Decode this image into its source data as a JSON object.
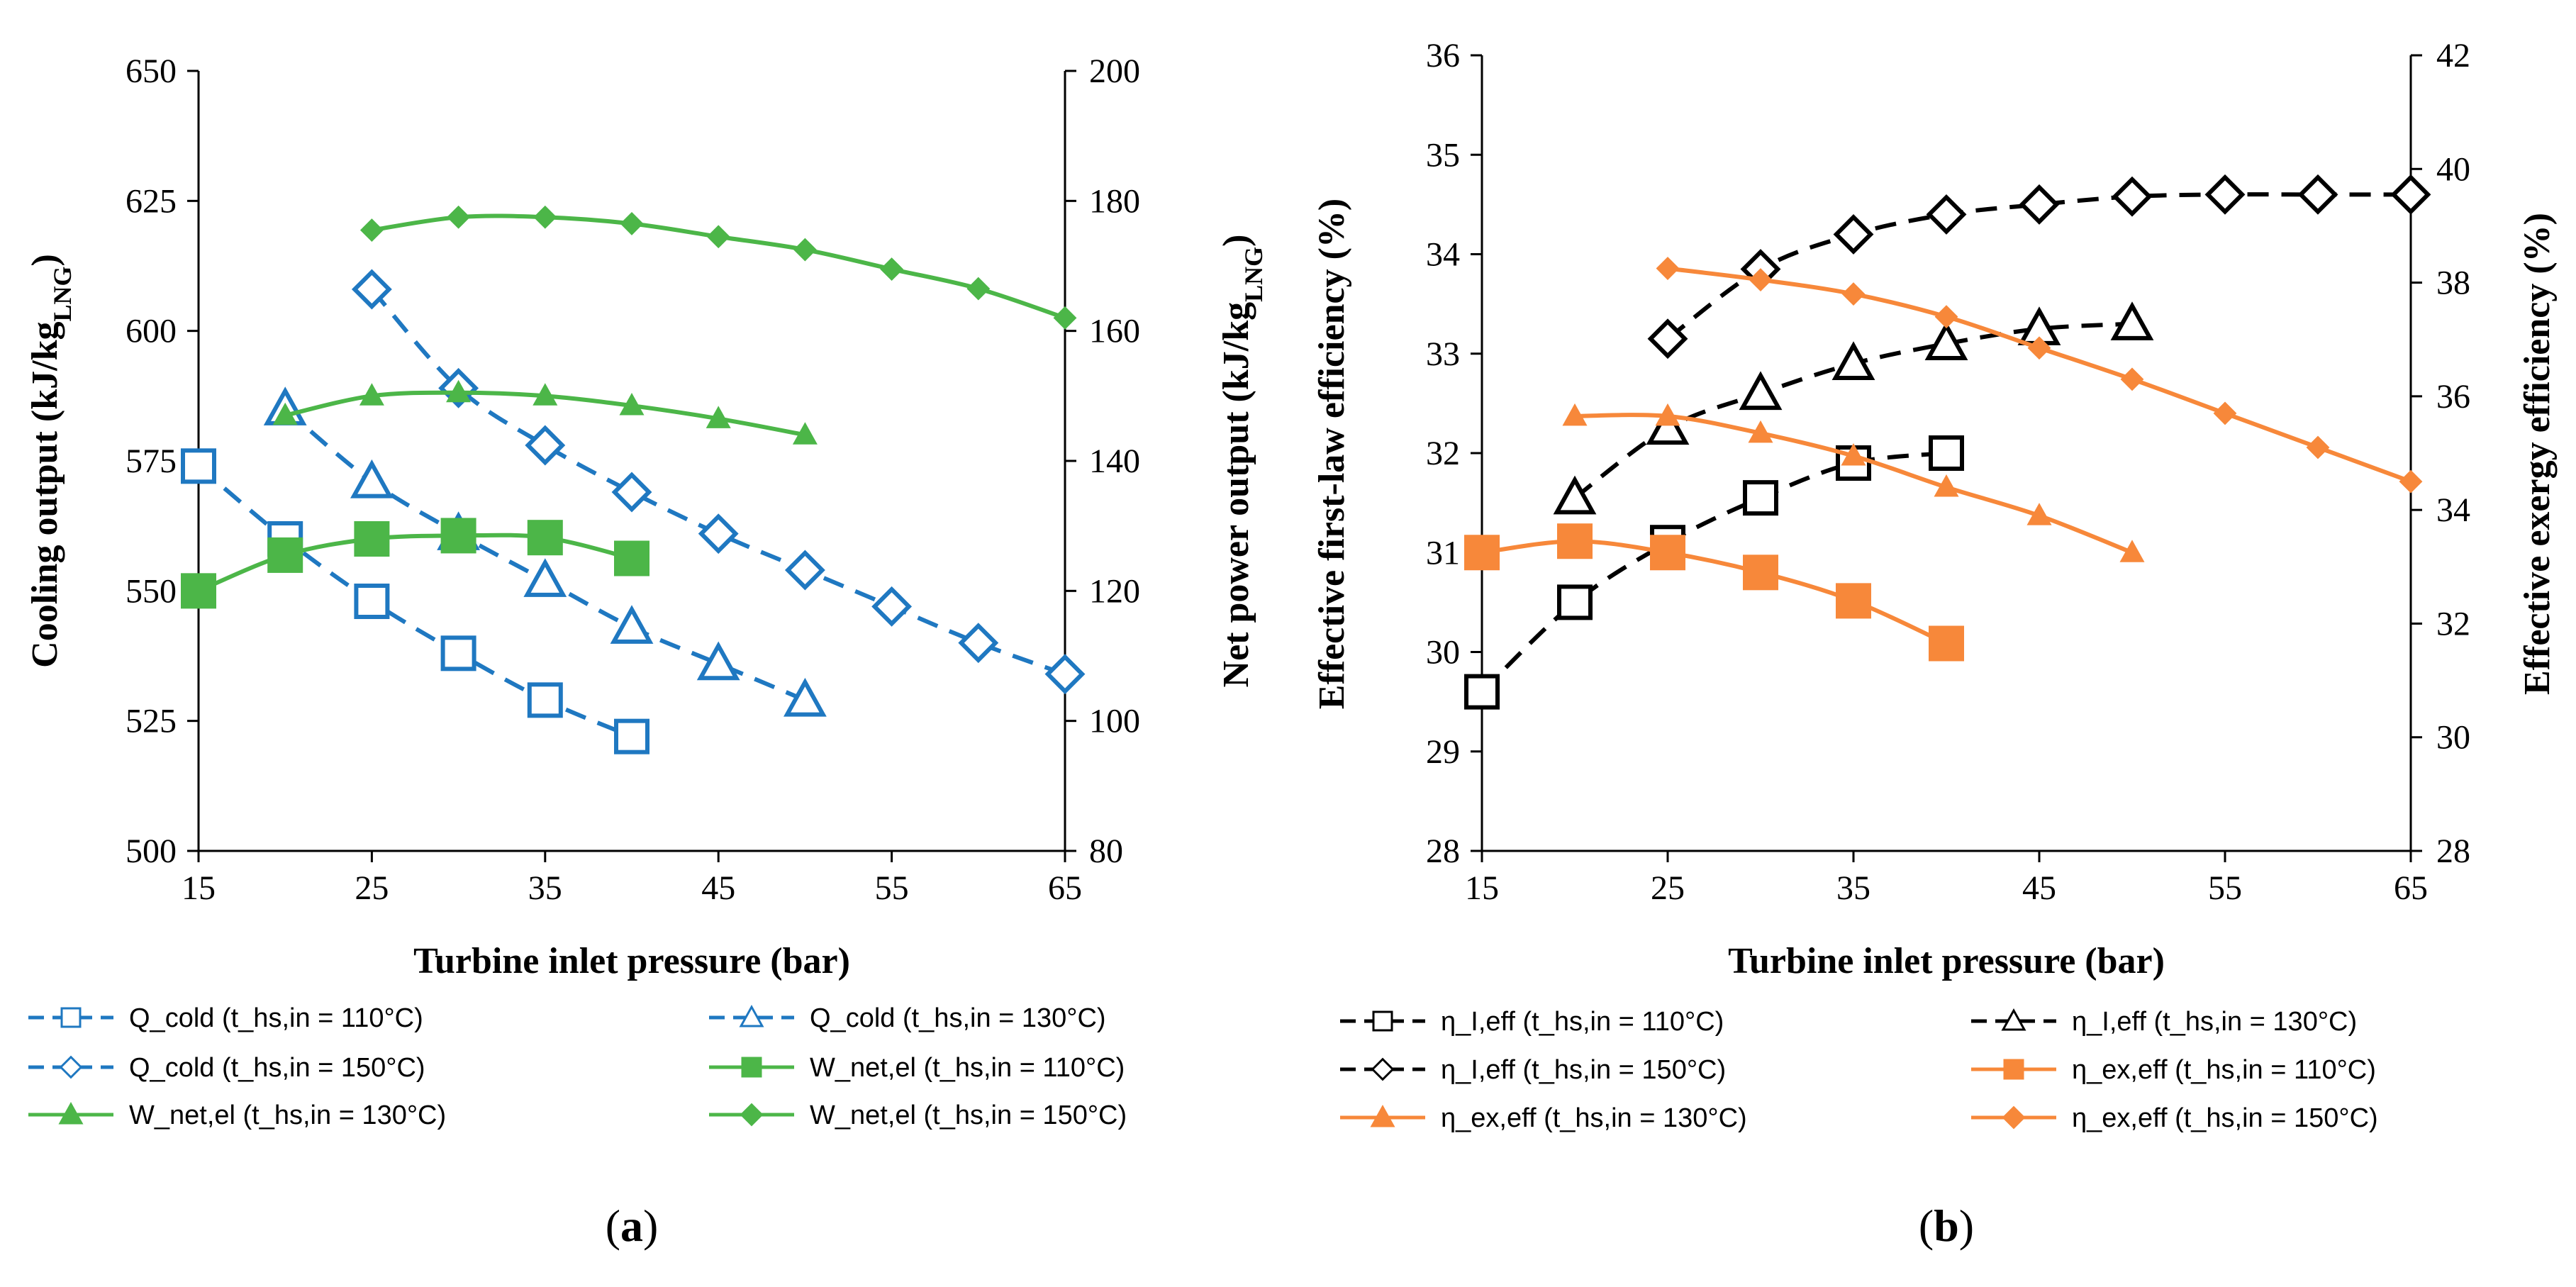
{
  "colors": {
    "blue": "#1F78C1",
    "green": "#4CB648",
    "black": "#000000",
    "orange": "#F7883A"
  },
  "panel_labels": {
    "a_open": "(",
    "a": "a",
    "a_close": ")",
    "b_open": "(",
    "b": "b",
    "b_close": ")"
  },
  "chart_data": [
    {
      "id": "a",
      "type": "line",
      "xlabel": "Turbine inlet pressure (bar)",
      "ylabel_left": "Cooling output (kJ/kg",
      "ylabel_left_sub": "LNG",
      "ylabel_left_end": ")",
      "ylabel_right": "Net power output (kJ/kg",
      "ylabel_right_sub": "LNG",
      "ylabel_right_end": ")",
      "xlim": [
        15,
        65
      ],
      "xticks": [
        15,
        25,
        35,
        45,
        55,
        65
      ],
      "ylim_left": [
        500,
        650
      ],
      "yticks_left": [
        500,
        525,
        550,
        575,
        600,
        625,
        650
      ],
      "ylim_right": [
        80,
        200
      ],
      "yticks_right": [
        80,
        100,
        120,
        140,
        160,
        180,
        200
      ],
      "series": [
        {
          "name": "Q_cold (t_hs,in = 110°C)",
          "axis": "left",
          "color": "blue",
          "dash": true,
          "marker": "square",
          "filled": false,
          "size": "large",
          "x": [
            15,
            20,
            25,
            30,
            35,
            40
          ],
          "y": [
            574,
            560,
            548,
            538,
            529,
            522
          ]
        },
        {
          "name": "Q_cold (t_hs,in = 130°C)",
          "axis": "left",
          "color": "blue",
          "dash": true,
          "marker": "triangle",
          "filled": false,
          "size": "large",
          "x": [
            20,
            25,
            30,
            35,
            40,
            45,
            50
          ],
          "y": [
            585,
            571,
            561,
            552,
            543,
            536,
            529
          ]
        },
        {
          "name": "Q_cold (t_hs,in = 150°C)",
          "axis": "left",
          "color": "blue",
          "dash": true,
          "marker": "diamond",
          "filled": false,
          "size": "large",
          "x": [
            25,
            30,
            35,
            40,
            45,
            50,
            55,
            60,
            65
          ],
          "y": [
            608,
            589,
            578,
            569,
            561,
            554,
            547,
            540,
            534
          ]
        },
        {
          "name": "W_net,el (t_hs,in = 110°C)",
          "axis": "right",
          "color": "green",
          "dash": false,
          "marker": "square",
          "filled": true,
          "size": "large",
          "x": [
            15,
            20,
            25,
            30,
            35,
            40
          ],
          "y": [
            120,
            125.5,
            128,
            128.5,
            128.2,
            125
          ]
        },
        {
          "name": "W_net,el (t_hs,in = 130°C)",
          "axis": "right",
          "color": "green",
          "dash": false,
          "marker": "triangle",
          "filled": true,
          "size": "small",
          "x": [
            20,
            25,
            30,
            35,
            40,
            45,
            50
          ],
          "y": [
            147,
            150,
            150.5,
            150,
            148.5,
            146.5,
            144
          ]
        },
        {
          "name": "W_net,el (t_hs,in = 150°C)",
          "axis": "right",
          "color": "green",
          "dash": false,
          "marker": "diamond",
          "filled": true,
          "size": "small",
          "x": [
            25,
            30,
            35,
            40,
            45,
            50,
            55,
            60,
            65
          ],
          "y": [
            175.5,
            177.5,
            177.5,
            176.5,
            174.5,
            172.5,
            169.5,
            166.5,
            162
          ]
        }
      ]
    },
    {
      "id": "b",
      "type": "line",
      "xlabel": "Turbine inlet pressure (bar)",
      "ylabel_left": "Effective first-law efficiency (%)",
      "ylabel_right": "Effective exergy efficiency (%)",
      "xlim": [
        15,
        65
      ],
      "xticks": [
        15,
        25,
        35,
        45,
        55,
        65
      ],
      "ylim_left": [
        28,
        36
      ],
      "yticks_left": [
        28,
        29,
        30,
        31,
        32,
        33,
        34,
        35,
        36
      ],
      "ylim_right": [
        28,
        42
      ],
      "yticks_right": [
        28,
        30,
        32,
        34,
        36,
        38,
        40,
        42
      ],
      "series": [
        {
          "name": "η_I,eff (t_hs,in = 110°C)",
          "axis": "left",
          "color": "black",
          "dash": true,
          "marker": "square",
          "filled": false,
          "size": "large",
          "x": [
            15,
            20,
            25,
            30,
            35,
            40
          ],
          "y": [
            29.6,
            30.5,
            31.1,
            31.55,
            31.9,
            32.0
          ]
        },
        {
          "name": "η_I,eff (t_hs,in = 130°C)",
          "axis": "left",
          "color": "black",
          "dash": true,
          "marker": "triangle",
          "filled": false,
          "size": "large",
          "x": [
            20,
            25,
            30,
            35,
            40,
            45,
            50
          ],
          "y": [
            31.55,
            32.25,
            32.6,
            32.9,
            33.1,
            33.25,
            33.3
          ]
        },
        {
          "name": "η_I,eff (t_hs,in = 150°C)",
          "axis": "left",
          "color": "black",
          "dash": true,
          "marker": "diamond",
          "filled": false,
          "size": "large",
          "x": [
            25,
            30,
            35,
            40,
            45,
            50,
            55,
            60,
            65
          ],
          "y": [
            33.15,
            33.85,
            34.2,
            34.4,
            34.5,
            34.58,
            34.6,
            34.6,
            34.6
          ]
        },
        {
          "name": "η_ex,eff (t_hs,in = 110°C)",
          "axis": "right",
          "color": "orange",
          "dash": false,
          "marker": "square",
          "filled": true,
          "size": "large",
          "x": [
            15,
            20,
            25,
            30,
            35,
            40
          ],
          "y": [
            33.25,
            33.45,
            33.25,
            32.9,
            32.4,
            31.65
          ]
        },
        {
          "name": "η_ex,eff (t_hs,in = 130°C)",
          "axis": "right",
          "color": "orange",
          "dash": false,
          "marker": "triangle",
          "filled": true,
          "size": "small",
          "x": [
            20,
            25,
            30,
            35,
            40,
            45,
            50
          ],
          "y": [
            35.65,
            35.65,
            35.35,
            34.95,
            34.4,
            33.9,
            33.25
          ]
        },
        {
          "name": "η_ex,eff (t_hs,in = 150°C)",
          "axis": "right",
          "color": "orange",
          "dash": false,
          "marker": "diamond",
          "filled": true,
          "size": "small",
          "x": [
            25,
            30,
            35,
            40,
            45,
            50,
            55,
            60,
            65
          ],
          "y": [
            38.25,
            38.05,
            37.8,
            37.4,
            36.85,
            36.3,
            35.7,
            35.1,
            34.5
          ]
        }
      ]
    }
  ]
}
